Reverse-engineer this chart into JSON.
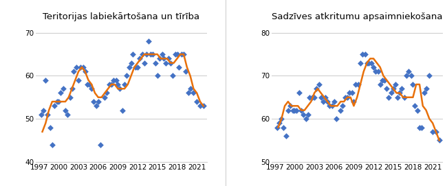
{
  "title1": "Teritorijas labiekārtošana un tīrība",
  "title2": "Sadzīves atkritumu apsaimniekošana",
  "scatter1_x": [
    1997.3,
    1997.7,
    1998.0,
    1998.3,
    1998.7,
    1999.0,
    1999.3,
    1999.7,
    2000.0,
    2000.3,
    2000.7,
    2001.0,
    2001.3,
    2001.7,
    2002.0,
    2002.3,
    2002.7,
    2003.0,
    2003.3,
    2003.7,
    2004.0,
    2004.3,
    2004.7,
    2005.0,
    2005.3,
    2005.7,
    2006.0,
    2006.3,
    2007.0,
    2007.3,
    2007.7,
    2008.0,
    2008.3,
    2008.7,
    2009.0,
    2009.3,
    2009.7,
    2010.0,
    2010.3,
    2010.7,
    2011.0,
    2011.3,
    2011.7,
    2012.0,
    2012.3,
    2012.7,
    2013.0,
    2013.3,
    2013.7,
    2014.0,
    2014.3,
    2014.7,
    2015.0,
    2015.3,
    2015.7,
    2016.0,
    2016.3,
    2016.7,
    2017.0,
    2017.3,
    2017.7,
    2018.0,
    2018.3,
    2018.7,
    2019.0,
    2019.3,
    2019.7,
    2020.0,
    2020.5,
    2021.0,
    2021.5,
    2022.0
  ],
  "scatter1_y": [
    51,
    52,
    59,
    51,
    48,
    44,
    53,
    54,
    54,
    56,
    57,
    52,
    51,
    55,
    57,
    61,
    62,
    59,
    62,
    62,
    61,
    58,
    58,
    57,
    54,
    53,
    54,
    44,
    55,
    56,
    58,
    58,
    59,
    59,
    58,
    57,
    52,
    58,
    60,
    62,
    63,
    65,
    62,
    62,
    64,
    65,
    63,
    65,
    68,
    65,
    65,
    63,
    60,
    64,
    65,
    64,
    63,
    64,
    63,
    60,
    65,
    65,
    62,
    65,
    65,
    61,
    56,
    57,
    56,
    54,
    53,
    53
  ],
  "line1_x": [
    1997.5,
    1998.0,
    1998.5,
    1999.0,
    1999.5,
    2000.0,
    2000.5,
    2001.0,
    2001.5,
    2002.0,
    2002.5,
    2003.0,
    2003.5,
    2004.0,
    2004.5,
    2005.0,
    2005.5,
    2006.0,
    2006.5,
    2007.0,
    2007.5,
    2008.0,
    2008.5,
    2009.0,
    2009.5,
    2010.0,
    2010.5,
    2011.0,
    2011.5,
    2012.0,
    2012.5,
    2013.0,
    2013.5,
    2014.0,
    2014.5,
    2015.0,
    2015.5,
    2016.0,
    2016.5,
    2017.0,
    2017.5,
    2018.0,
    2018.5,
    2019.0,
    2019.5,
    2020.0,
    2020.5,
    2021.0,
    2021.5,
    2022.0
  ],
  "line1_y": [
    47,
    49,
    52,
    54,
    54,
    54,
    54,
    54,
    55,
    57,
    59,
    61,
    62,
    61,
    59,
    58,
    56,
    55,
    55,
    56,
    57,
    58,
    58,
    57,
    57,
    57,
    58,
    60,
    62,
    63,
    64,
    65,
    65,
    65,
    65,
    65,
    64,
    64,
    64,
    63,
    63,
    64,
    65,
    65,
    62,
    60,
    57,
    56,
    54,
    53
  ],
  "scatter2_x": [
    1997.3,
    1997.7,
    1998.0,
    1998.3,
    1998.7,
    1999.0,
    1999.3,
    1999.7,
    2000.0,
    2000.3,
    2000.7,
    2001.0,
    2001.3,
    2001.7,
    2002.0,
    2002.3,
    2002.7,
    2003.0,
    2003.3,
    2003.7,
    2004.0,
    2004.3,
    2004.7,
    2005.0,
    2005.3,
    2005.7,
    2006.0,
    2006.3,
    2007.0,
    2007.3,
    2007.7,
    2008.0,
    2008.3,
    2008.7,
    2009.0,
    2009.3,
    2009.7,
    2010.0,
    2010.3,
    2010.7,
    2011.0,
    2011.3,
    2011.7,
    2012.0,
    2012.3,
    2012.7,
    2013.0,
    2013.3,
    2013.7,
    2014.0,
    2014.3,
    2014.7,
    2015.0,
    2015.3,
    2015.7,
    2016.0,
    2016.3,
    2016.7,
    2017.0,
    2017.3,
    2017.7,
    2018.0,
    2018.3,
    2018.7,
    2019.0,
    2019.3,
    2019.7,
    2020.0,
    2020.5,
    2021.0,
    2021.5,
    2022.0
  ],
  "scatter2_y": [
    58,
    59,
    60,
    58,
    56,
    62,
    63,
    62,
    62,
    62,
    66,
    62,
    61,
    60,
    61,
    65,
    65,
    65,
    67,
    68,
    65,
    64,
    65,
    64,
    63,
    63,
    64,
    60,
    62,
    63,
    65,
    65,
    66,
    66,
    64,
    68,
    68,
    73,
    75,
    75,
    73,
    73,
    73,
    72,
    71,
    71,
    68,
    69,
    69,
    67,
    65,
    66,
    67,
    68,
    65,
    66,
    67,
    65,
    70,
    71,
    70,
    68,
    63,
    62,
    58,
    58,
    66,
    67,
    70,
    57,
    57,
    55
  ],
  "line2_x": [
    1997.5,
    1998.0,
    1998.5,
    1999.0,
    1999.5,
    2000.0,
    2000.5,
    2001.0,
    2001.5,
    2002.0,
    2002.5,
    2003.0,
    2003.5,
    2004.0,
    2004.5,
    2005.0,
    2005.5,
    2006.0,
    2006.5,
    2007.0,
    2007.5,
    2008.0,
    2008.5,
    2009.0,
    2009.5,
    2010.0,
    2010.5,
    2011.0,
    2011.5,
    2012.0,
    2012.5,
    2013.0,
    2013.5,
    2014.0,
    2014.5,
    2015.0,
    2015.5,
    2016.0,
    2016.5,
    2017.0,
    2017.5,
    2018.0,
    2018.5,
    2019.0,
    2019.5,
    2020.0,
    2020.5,
    2021.0,
    2021.5,
    2022.0
  ],
  "line2_y": [
    58,
    60,
    63,
    64,
    63,
    63,
    63,
    62,
    62,
    63,
    64,
    66,
    67,
    66,
    65,
    64,
    63,
    63,
    63,
    64,
    64,
    65,
    65,
    63,
    65,
    68,
    71,
    73,
    74,
    74,
    73,
    72,
    70,
    69,
    68,
    67,
    66,
    66,
    65,
    65,
    65,
    65,
    68,
    68,
    63,
    62,
    60,
    59,
    57,
    55
  ],
  "scatter_color": "#4472C4",
  "line_color": "#E8700A",
  "xlim": [
    1996.5,
    2022.5
  ],
  "xticks": [
    1997,
    2000,
    2003,
    2006,
    2009,
    2012,
    2015,
    2018,
    2021
  ],
  "ylim1": [
    40,
    72
  ],
  "yticks1": [
    40,
    50,
    60,
    70
  ],
  "ylim2": [
    50,
    82
  ],
  "yticks2": [
    50,
    60,
    70,
    80
  ],
  "marker_size": 20,
  "line_width": 1.8,
  "bg_color": "#ffffff",
  "grid_color": "#d0d0d0",
  "tick_fontsize": 7.5,
  "title_fontsize": 9.5
}
